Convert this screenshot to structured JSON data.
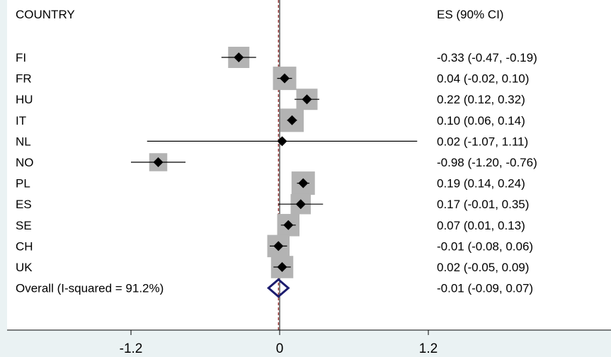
{
  "chart_data": {
    "type": "forest",
    "title": "",
    "header_left": "COUNTRY",
    "header_right": "ES (90% CI)",
    "xlim": [
      -2.2,
      2.6
    ],
    "xticks": [
      -1.2,
      0,
      1.2
    ],
    "xtick_labels": [
      "-1.2",
      "0",
      "1.2"
    ],
    "reference_line": 0,
    "overall_line": -0.01,
    "studies": [
      {
        "label": "FI",
        "es": -0.33,
        "lo": -0.47,
        "hi": -0.19,
        "weight": 1.0,
        "text": "-0.33 (-0.47, -0.19)"
      },
      {
        "label": "FR",
        "es": 0.04,
        "lo": -0.02,
        "hi": 0.1,
        "weight": 1.1,
        "text": "0.04 (-0.02, 0.10)"
      },
      {
        "label": "HU",
        "es": 0.22,
        "lo": 0.12,
        "hi": 0.32,
        "weight": 1.0,
        "text": "0.22 (0.12, 0.32)"
      },
      {
        "label": "IT",
        "es": 0.1,
        "lo": 0.06,
        "hi": 0.14,
        "weight": 1.1,
        "text": "0.10 (0.06, 0.14)"
      },
      {
        "label": "NL",
        "es": 0.02,
        "lo": -1.07,
        "hi": 1.11,
        "weight": 0.15,
        "text": "0.02 (-1.07, 1.11)"
      },
      {
        "label": "NO",
        "es": -0.98,
        "lo": -1.2,
        "hi": -0.76,
        "weight": 0.85,
        "text": "-0.98 (-1.20, -0.76)"
      },
      {
        "label": "PL",
        "es": 0.19,
        "lo": 0.14,
        "hi": 0.24,
        "weight": 1.1,
        "text": "0.19 (0.14, 0.24)"
      },
      {
        "label": "ES",
        "es": 0.17,
        "lo": -0.01,
        "hi": 0.35,
        "weight": 0.95,
        "text": "0.17 (-0.01, 0.35)"
      },
      {
        "label": "SE",
        "es": 0.07,
        "lo": 0.01,
        "hi": 0.13,
        "weight": 1.05,
        "text": "0.07 (0.01, 0.13)"
      },
      {
        "label": "CH",
        "es": -0.01,
        "lo": -0.08,
        "hi": 0.06,
        "weight": 1.05,
        "text": "-0.01 (-0.08, 0.06)"
      },
      {
        "label": "UK",
        "es": 0.02,
        "lo": -0.05,
        "hi": 0.09,
        "weight": 1.05,
        "text": "0.02 (-0.05, 0.09)"
      }
    ],
    "overall": {
      "label": "Overall  (I-squared = 91.2%)",
      "es": -0.01,
      "lo": -0.09,
      "hi": 0.07,
      "text": "-0.01 (-0.09, 0.07)"
    },
    "colors": {
      "background": "#eaf2f3",
      "plot_area": "#ffffff",
      "weight_box": "#b3b3b3",
      "marker": "#000000",
      "overall_diamond": "#1c1c6e",
      "overall_line": "#8b1a1a"
    }
  }
}
